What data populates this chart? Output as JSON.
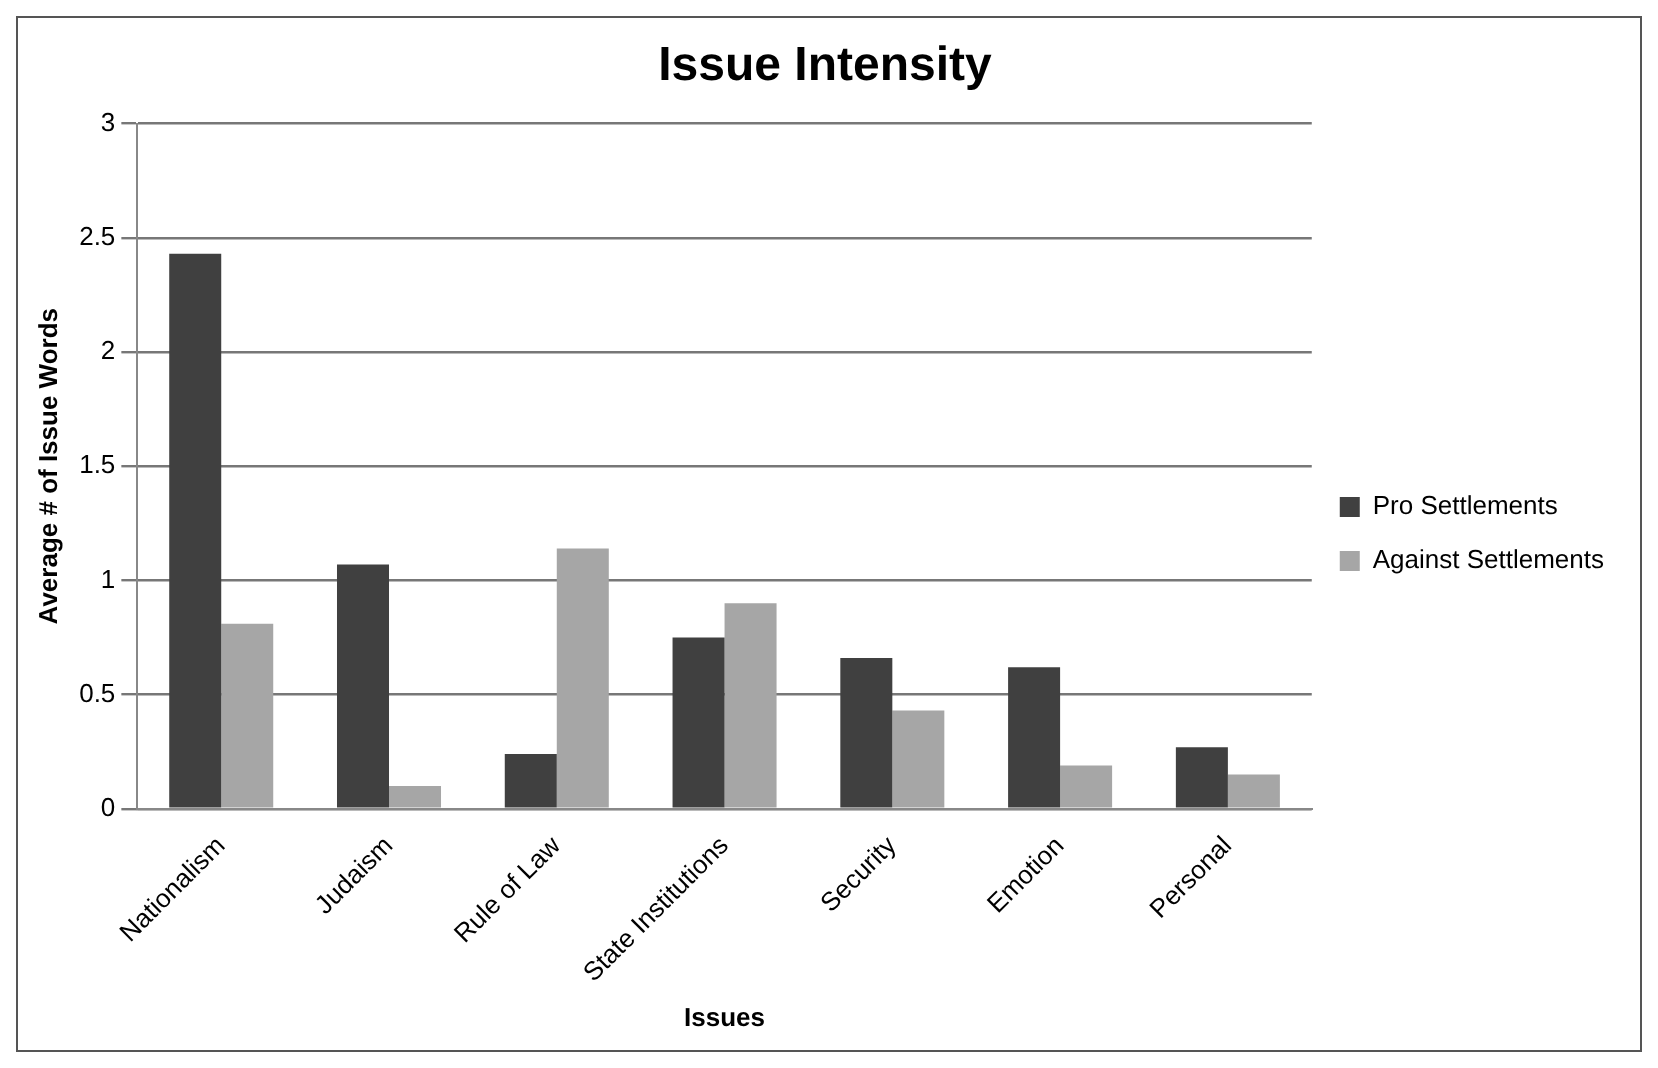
{
  "chart_data": {
    "type": "bar",
    "title": "Issue Intensity",
    "xlabel": "Issues",
    "ylabel": "Average # of Issue Words",
    "categories": [
      "Nationalism",
      "Judaism",
      "Rule of Law",
      "State Institutions",
      "Security",
      "Emotion",
      "Personal"
    ],
    "series": [
      {
        "name": "Pro Settlements",
        "color": "#404040",
        "values": [
          2.43,
          1.07,
          0.24,
          0.75,
          0.66,
          0.62,
          0.27
        ]
      },
      {
        "name": "Against Settlements",
        "color": "#a6a6a6",
        "values": [
          0.81,
          0.1,
          1.14,
          0.9,
          0.43,
          0.19,
          0.15
        ]
      }
    ],
    "ylim": [
      0,
      3
    ],
    "yticks": [
      0,
      0.5,
      1,
      1.5,
      2,
      2.5,
      3
    ],
    "grid": "y",
    "legend": "right"
  }
}
